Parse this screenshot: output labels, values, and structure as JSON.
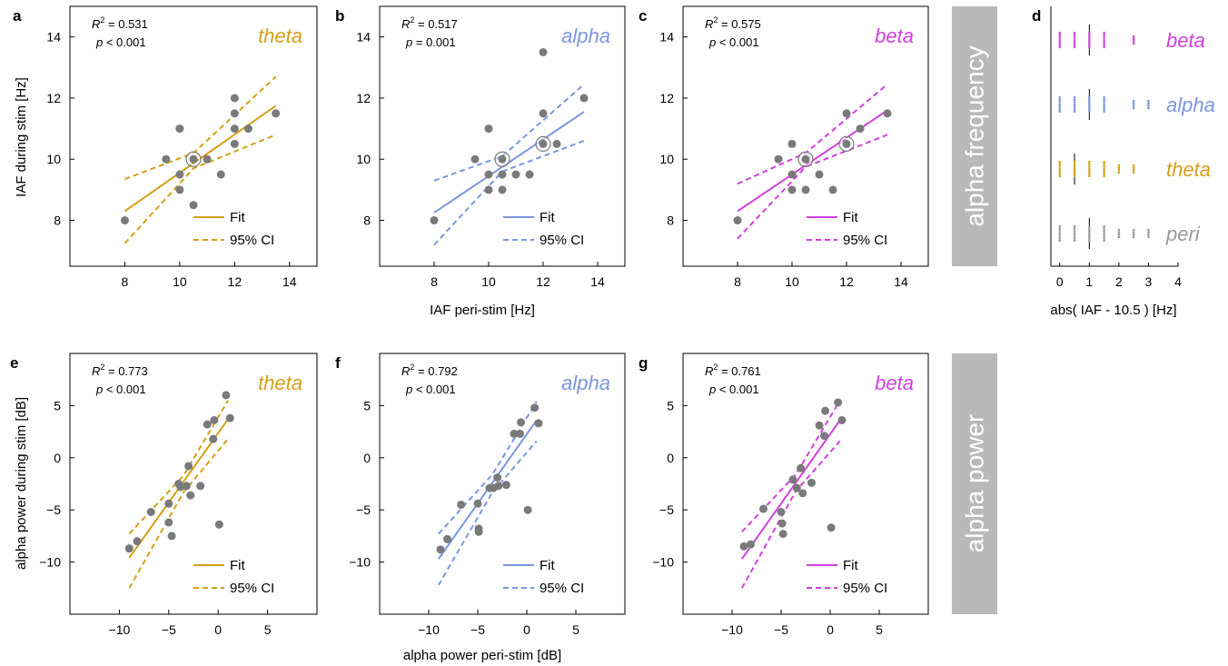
{
  "colors": {
    "theta": "#d4a017",
    "alpha": "#7b96e0",
    "beta": "#d23fe0",
    "peri": "#9a9a9a",
    "point": "#7a7a7a",
    "band": "#b9b9b9",
    "axis": "#000000"
  },
  "labels": {
    "row1_ylabel": "IAF during stim [Hz]",
    "row1_xlabel": "IAF peri-stim [Hz]",
    "row2_ylabel": "alpha power during stim [dB]",
    "row2_xlabel": "alpha power peri-stim [dB]",
    "band1": "alpha frequency",
    "band2": "alpha power",
    "d_xlabel": "abs( IAF - 10.5 ) [Hz]",
    "fit": "Fit",
    "ci": "95% CI",
    "r2_prefix": "R",
    "r2_sup": "2",
    "p_prefix": "p"
  },
  "chart_data": [
    {
      "type": "scatter",
      "panel": "a",
      "condition": "theta",
      "color": "theta",
      "stats": {
        "r2": "= 0.531",
        "p": "< 0.001"
      },
      "xlim": [
        6,
        15
      ],
      "ylim": [
        6.5,
        15
      ],
      "xticks": [
        8,
        10,
        12,
        14
      ],
      "yticks": [
        8,
        10,
        12,
        14
      ],
      "points": [
        [
          8,
          8
        ],
        [
          9.5,
          10
        ],
        [
          10,
          11
        ],
        [
          10,
          9.5
        ],
        [
          10,
          9
        ],
        [
          10.5,
          8.5
        ],
        [
          10.5,
          10
        ],
        [
          11,
          10
        ],
        [
          11.5,
          9.5
        ],
        [
          12,
          12
        ],
        [
          12,
          11.5
        ],
        [
          12,
          11
        ],
        [
          12,
          10.5
        ],
        [
          12.5,
          11
        ],
        [
          13.5,
          11.5
        ]
      ],
      "rings": [
        [
          10.5,
          10
        ]
      ],
      "fit": [
        [
          8,
          8.3
        ],
        [
          13.5,
          11.75
        ]
      ],
      "ci_upper": [
        [
          8,
          9.35
        ],
        [
          10.5,
          10.2
        ],
        [
          13.5,
          12.7
        ]
      ],
      "ci_lower": [
        [
          8,
          7.25
        ],
        [
          10.5,
          9.7
        ],
        [
          13.5,
          10.8
        ]
      ]
    },
    {
      "type": "scatter",
      "panel": "b",
      "condition": "alpha",
      "color": "alpha",
      "stats": {
        "r2": "= 0.517",
        "p": "= 0.001"
      },
      "xlim": [
        6,
        15
      ],
      "ylim": [
        6.5,
        15
      ],
      "xticks": [
        8,
        10,
        12,
        14
      ],
      "yticks": [
        8,
        10,
        12,
        14
      ],
      "points": [
        [
          8,
          8
        ],
        [
          9.5,
          10
        ],
        [
          10,
          11
        ],
        [
          10,
          9.5
        ],
        [
          10,
          9
        ],
        [
          10.5,
          9.5
        ],
        [
          10.5,
          9
        ],
        [
          10.5,
          10
        ],
        [
          11,
          9.5
        ],
        [
          11.5,
          9.5
        ],
        [
          12,
          13.5
        ],
        [
          12,
          11.5
        ],
        [
          12,
          10.5
        ],
        [
          12.5,
          10.5
        ],
        [
          13.5,
          12
        ]
      ],
      "rings": [
        [
          10.5,
          10
        ],
        [
          12,
          10.5
        ]
      ],
      "fit": [
        [
          8,
          8.25
        ],
        [
          13.5,
          11.55
        ]
      ],
      "ci_upper": [
        [
          8,
          9.3
        ],
        [
          10.5,
          10.1
        ],
        [
          13.5,
          12.45
        ]
      ],
      "ci_lower": [
        [
          8,
          7.2
        ],
        [
          10.5,
          9.6
        ],
        [
          13.5,
          10.6
        ]
      ]
    },
    {
      "type": "scatter",
      "panel": "c",
      "condition": "beta",
      "color": "beta",
      "stats": {
        "r2": "= 0.575",
        "p": "< 0.001"
      },
      "xlim": [
        6,
        15
      ],
      "ylim": [
        6.5,
        15
      ],
      "xticks": [
        8,
        10,
        12,
        14
      ],
      "yticks": [
        8,
        10,
        12,
        14
      ],
      "points": [
        [
          8,
          8
        ],
        [
          9.5,
          10
        ],
        [
          10,
          10.5
        ],
        [
          10,
          9.5
        ],
        [
          10,
          9
        ],
        [
          10.5,
          9
        ],
        [
          10.5,
          10
        ],
        [
          11,
          9.5
        ],
        [
          11.5,
          9
        ],
        [
          12,
          11.5
        ],
        [
          12,
          10.5
        ],
        [
          12.5,
          11
        ],
        [
          13.5,
          11.5
        ]
      ],
      "rings": [
        [
          10.5,
          10
        ],
        [
          12,
          10.5
        ]
      ],
      "fit": [
        [
          8,
          8.3
        ],
        [
          13.5,
          11.6
        ]
      ],
      "ci_upper": [
        [
          8,
          9.2
        ],
        [
          10.5,
          10.2
        ],
        [
          13.5,
          12.45
        ]
      ],
      "ci_lower": [
        [
          8,
          7.4
        ],
        [
          10.5,
          9.75
        ],
        [
          13.5,
          10.8
        ]
      ]
    },
    {
      "type": "scatter",
      "panel": "e",
      "condition": "theta",
      "color": "theta",
      "stats": {
        "r2": "= 0.773",
        "p": "< 0.001"
      },
      "xlim": [
        -15,
        10
      ],
      "ylim": [
        -15,
        10
      ],
      "xticks": [
        -10,
        -5,
        0,
        5
      ],
      "yticks": [
        -10,
        -5,
        0,
        5
      ],
      "points": [
        [
          -9,
          -8.7
        ],
        [
          -8.2,
          -8
        ],
        [
          -6.8,
          -5.2
        ],
        [
          -5,
          -4.4
        ],
        [
          -5,
          -6.2
        ],
        [
          -4.7,
          -7.5
        ],
        [
          -4,
          -2.5
        ],
        [
          -3.8,
          -2.8
        ],
        [
          -3.2,
          -2.7
        ],
        [
          -3,
          -0.8
        ],
        [
          -2.8,
          -3.6
        ],
        [
          -1.8,
          -2.7
        ],
        [
          -1.1,
          3.2
        ],
        [
          -0.5,
          1.8
        ],
        [
          -0.4,
          3.6
        ],
        [
          0.1,
          -6.4
        ],
        [
          0.8,
          6
        ],
        [
          1.2,
          3.8
        ]
      ],
      "fit": [
        [
          -9,
          -9.6
        ],
        [
          1,
          3.7
        ]
      ],
      "ci_upper": [
        [
          -9,
          -7.3
        ],
        [
          -3.5,
          -1.7
        ],
        [
          1,
          5.5
        ]
      ],
      "ci_lower": [
        [
          -9,
          -12.5
        ],
        [
          -3.5,
          -3.3
        ],
        [
          1,
          1.8
        ]
      ]
    },
    {
      "type": "scatter",
      "panel": "f",
      "condition": "alpha",
      "color": "alpha",
      "stats": {
        "r2": "= 0.792",
        "p": "< 0.001"
      },
      "xlim": [
        -15,
        10
      ],
      "ylim": [
        -15,
        10
      ],
      "xticks": [
        -10,
        -5,
        0,
        5
      ],
      "yticks": [
        -10,
        -5,
        0,
        5
      ],
      "points": [
        [
          -8.8,
          -8.8
        ],
        [
          -8.1,
          -7.8
        ],
        [
          -6.7,
          -4.5
        ],
        [
          -5,
          -4.4
        ],
        [
          -4.9,
          -6.8
        ],
        [
          -4.9,
          -7.1
        ],
        [
          -3.8,
          -2.9
        ],
        [
          -3.4,
          -2.9
        ],
        [
          -3,
          -1.9
        ],
        [
          -2.9,
          -2.7
        ],
        [
          -2.1,
          -2.6
        ],
        [
          -1.3,
          2.3
        ],
        [
          -0.7,
          2.3
        ],
        [
          -0.6,
          3.4
        ],
        [
          0.1,
          -5
        ],
        [
          0.8,
          4.8
        ],
        [
          1.2,
          3.3
        ]
      ],
      "fit": [
        [
          -9,
          -9.7
        ],
        [
          1,
          3.6
        ]
      ],
      "ci_upper": [
        [
          -9,
          -7.3
        ],
        [
          -3.5,
          -1.6
        ],
        [
          1,
          5.4
        ]
      ],
      "ci_lower": [
        [
          -9,
          -12.2
        ],
        [
          -3.5,
          -3.3
        ],
        [
          1,
          1.6
        ]
      ]
    },
    {
      "type": "scatter",
      "panel": "g",
      "condition": "beta",
      "color": "beta",
      "stats": {
        "r2": "= 0.761",
        "p": "< 0.001"
      },
      "xlim": [
        -15,
        10
      ],
      "ylim": [
        -15,
        10
      ],
      "xticks": [
        -10,
        -5,
        0,
        5
      ],
      "yticks": [
        -10,
        -5,
        0,
        5
      ],
      "points": [
        [
          -8.8,
          -8.5
        ],
        [
          -8.1,
          -8.3
        ],
        [
          -6.8,
          -4.9
        ],
        [
          -5,
          -5.2
        ],
        [
          -4.9,
          -6.3
        ],
        [
          -4.8,
          -7.3
        ],
        [
          -3.8,
          -2.1
        ],
        [
          -3.4,
          -2.9
        ],
        [
          -3,
          -1
        ],
        [
          -2.8,
          -3.4
        ],
        [
          -1.9,
          -2.4
        ],
        [
          -1.1,
          3.1
        ],
        [
          -0.6,
          2.1
        ],
        [
          -0.5,
          4.5
        ],
        [
          0.1,
          -6.7
        ],
        [
          0.8,
          5.3
        ],
        [
          1.2,
          3.6
        ]
      ],
      "fit": [
        [
          -9,
          -9.7
        ],
        [
          1,
          3.6
        ]
      ],
      "ci_upper": [
        [
          -9,
          -7.1
        ],
        [
          -3.5,
          -1.6
        ],
        [
          1,
          5.5
        ]
      ],
      "ci_lower": [
        [
          -9,
          -12.5
        ],
        [
          -3.5,
          -3.2
        ],
        [
          1,
          1.6
        ]
      ]
    },
    {
      "type": "scatter",
      "panel": "d",
      "xlabel_key": "d_xlabel",
      "xlim": [
        -0.3,
        4
      ],
      "xticks": [
        0,
        1,
        2,
        3,
        4
      ],
      "rows": [
        {
          "name": "beta",
          "color": "beta",
          "median": 1,
          "dots": [
            [
              0,
              1
            ],
            [
              0.5,
              1
            ],
            [
              1,
              1
            ],
            [
              1.5,
              1
            ],
            [
              2.5,
              0.5
            ]
          ]
        },
        {
          "name": "alpha",
          "color": "alpha",
          "median": 1,
          "dots": [
            [
              0,
              1
            ],
            [
              0.5,
              1
            ],
            [
              1,
              1
            ],
            [
              1.5,
              1
            ],
            [
              2.5,
              0.5
            ],
            [
              3,
              0.5
            ]
          ]
        },
        {
          "name": "theta",
          "color": "theta",
          "median": 0.5,
          "dots": [
            [
              0,
              1
            ],
            [
              0.5,
              1
            ],
            [
              1,
              1
            ],
            [
              1.5,
              1
            ],
            [
              2,
              0.5
            ],
            [
              2.5,
              0.5
            ]
          ]
        },
        {
          "name": "peri",
          "color": "peri",
          "median": 1,
          "dots": [
            [
              0,
              1
            ],
            [
              0.5,
              1
            ],
            [
              1,
              1
            ],
            [
              1.5,
              1
            ],
            [
              2,
              0.5
            ],
            [
              2.5,
              0.5
            ],
            [
              3,
              0.5
            ]
          ]
        }
      ]
    }
  ]
}
